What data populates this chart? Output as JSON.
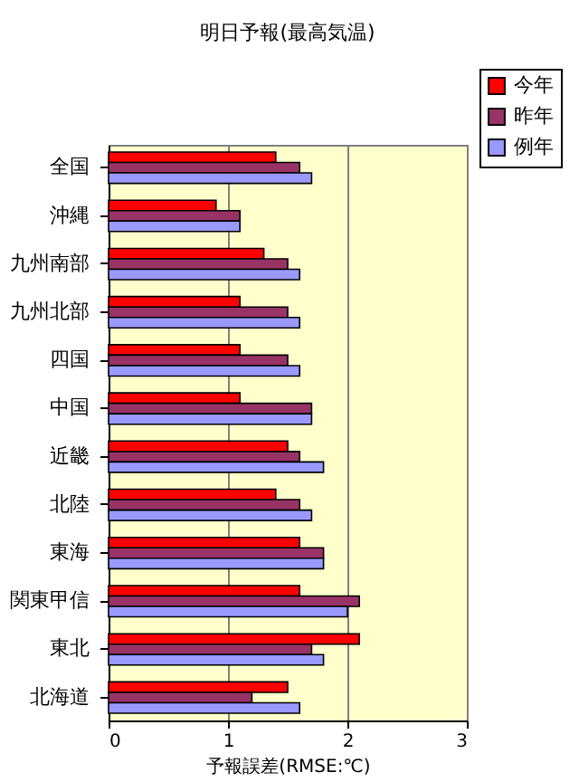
{
  "chart_data": {
    "type": "bar",
    "orientation": "horizontal",
    "title": "明日予報(最高気温)",
    "xlabel": "予報誤差(RMSE:℃)",
    "categories": [
      "全国",
      "沖縄",
      "九州南部",
      "九州北部",
      "四国",
      "中国",
      "近畿",
      "北陸",
      "東海",
      "関東甲信",
      "東北",
      "北海道"
    ],
    "series": [
      {
        "name": "今年",
        "color": "#ff0000",
        "values": [
          1.4,
          0.9,
          1.3,
          1.1,
          1.1,
          1.1,
          1.5,
          1.4,
          1.6,
          1.6,
          2.1,
          1.5
        ]
      },
      {
        "name": "昨年",
        "color": "#993366",
        "values": [
          1.6,
          1.1,
          1.5,
          1.5,
          1.5,
          1.7,
          1.6,
          1.6,
          1.8,
          2.1,
          1.7,
          1.2
        ]
      },
      {
        "name": "例年",
        "color": "#9999ff",
        "values": [
          1.7,
          1.1,
          1.6,
          1.6,
          1.6,
          1.7,
          1.8,
          1.7,
          1.8,
          2.0,
          1.8,
          1.6
        ]
      }
    ],
    "xlim": [
      0,
      3
    ],
    "xticks": [
      0,
      1,
      2,
      3
    ],
    "grid": "x",
    "legend": "top right"
  }
}
